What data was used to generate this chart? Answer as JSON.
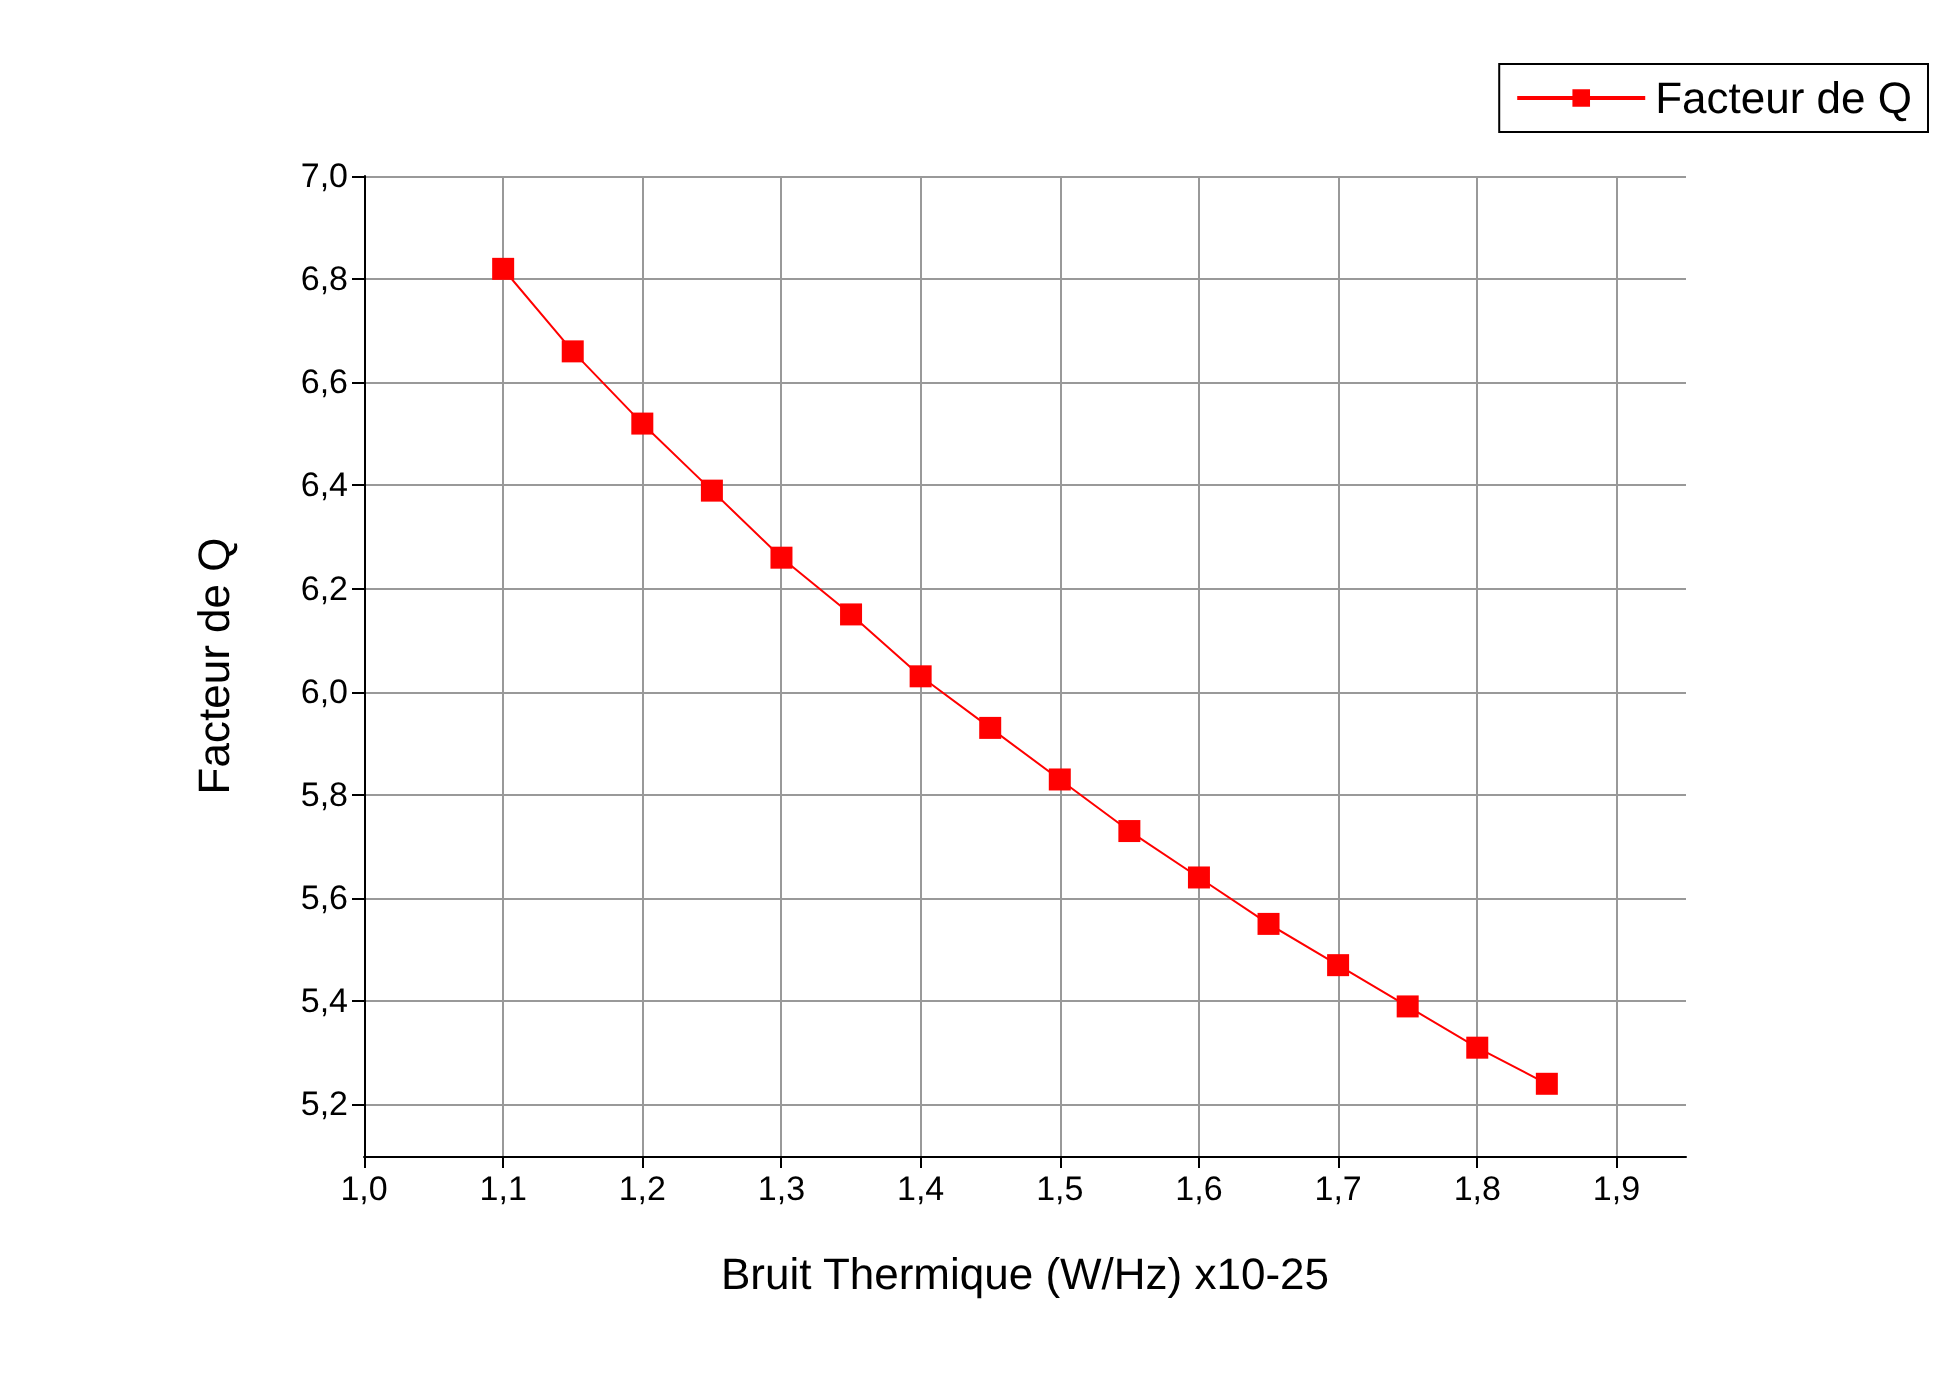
{
  "chart_data": {
    "type": "line",
    "xlabel": "Bruit Thermique (W/Hz) x10-25",
    "ylabel": "Facteur de Q",
    "x": [
      1.1,
      1.15,
      1.2,
      1.25,
      1.3,
      1.35,
      1.4,
      1.45,
      1.5,
      1.55,
      1.6,
      1.65,
      1.7,
      1.75,
      1.8,
      1.85
    ],
    "series": [
      {
        "name": "Facteur de Q",
        "color": "#ff0000",
        "values": [
          6.82,
          6.66,
          6.52,
          6.39,
          6.26,
          6.15,
          6.03,
          5.93,
          5.83,
          5.73,
          5.64,
          5.55,
          5.47,
          5.39,
          5.31,
          5.24
        ]
      }
    ],
    "xlim": [
      1.0,
      1.95
    ],
    "xticks": [
      {
        "value": 1.0,
        "label": "1,0"
      },
      {
        "value": 1.1,
        "label": "1,1"
      },
      {
        "value": 1.2,
        "label": "1,2"
      },
      {
        "value": 1.3,
        "label": "1,3"
      },
      {
        "value": 1.4,
        "label": "1,4"
      },
      {
        "value": 1.5,
        "label": "1,5"
      },
      {
        "value": 1.6,
        "label": "1,6"
      },
      {
        "value": 1.7,
        "label": "1,7"
      },
      {
        "value": 1.8,
        "label": "1,8"
      },
      {
        "value": 1.9,
        "label": "1,9"
      }
    ],
    "ylim": [
      5.1,
      7.0
    ],
    "yticks": [
      {
        "value": 5.2,
        "label": "5,2"
      },
      {
        "value": 5.4,
        "label": "5,4"
      },
      {
        "value": 5.6,
        "label": "5,6"
      },
      {
        "value": 5.8,
        "label": "5,8"
      },
      {
        "value": 6.0,
        "label": "6,0"
      },
      {
        "value": 6.2,
        "label": "6,2"
      },
      {
        "value": 6.4,
        "label": "6,4"
      },
      {
        "value": 6.6,
        "label": "6,6"
      },
      {
        "value": 6.8,
        "label": "6,8"
      },
      {
        "value": 7.0,
        "label": "7,0"
      }
    ],
    "grid": true,
    "legend": "top right",
    "marker": "square",
    "line_style": "solid"
  }
}
